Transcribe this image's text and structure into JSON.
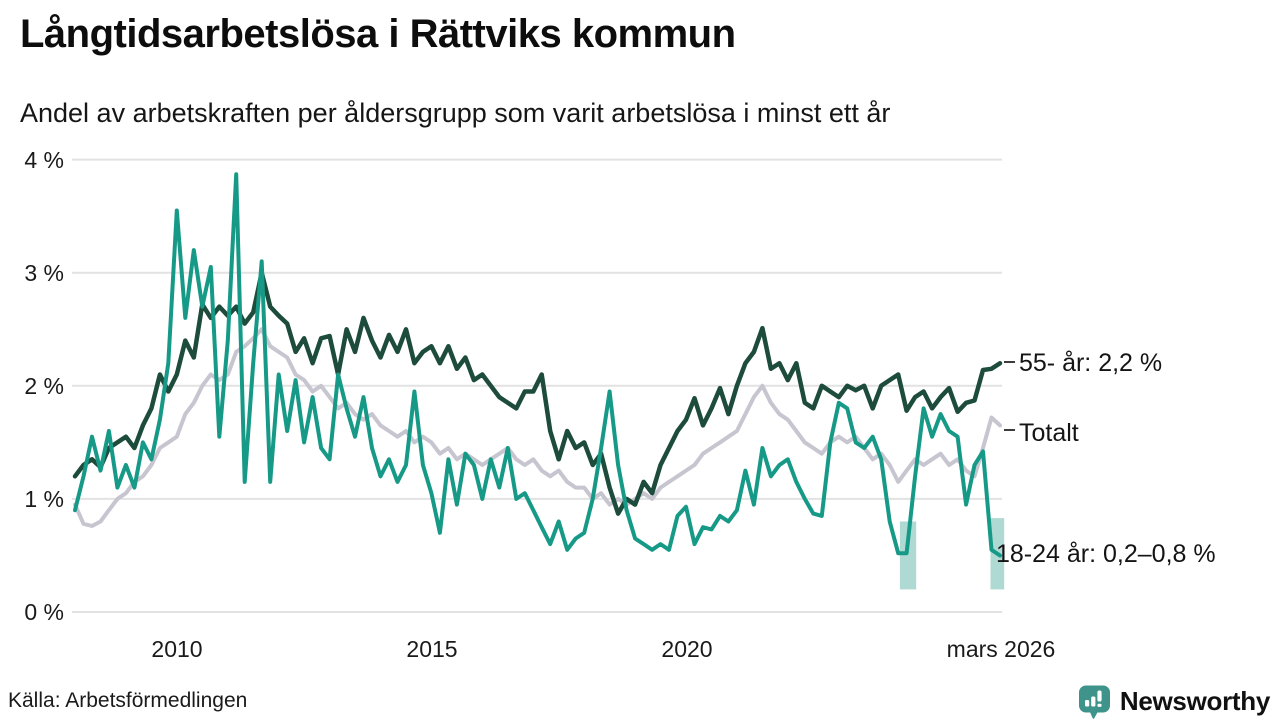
{
  "title": "Långtidsarbetslösa i Rättviks kommun",
  "subtitle": "Andel av arbetskraften per åldersgrupp som varit arbetslösa i minst ett år",
  "source": "Källa: Arbetsförmedlingen",
  "branding": {
    "name": "Newsworthy",
    "color": "#3e938a"
  },
  "colors": {
    "grid": "#e2e2e2",
    "band": "#aedad3",
    "tick_dash": "#3c3c3c",
    "series_55": "#1d4c3c",
    "series_total": "#c6c5d0",
    "series_1824": "#169a87"
  },
  "chart_data": {
    "type": "line",
    "title": "Långtidsarbetslösa i Rättviks kommun",
    "subtitle": "Andel av arbetskraften per åldersgrupp som varit arbetslösa i minst ett år",
    "unit": "% av arbetskraften",
    "grid": true,
    "legend_position": "right-end-labels",
    "ylim": [
      0,
      4
    ],
    "y_ticks": [
      {
        "v": 4,
        "label": "4 %"
      },
      {
        "v": 3,
        "label": "3 %"
      },
      {
        "v": 2,
        "label": "2 %"
      },
      {
        "v": 1,
        "label": "1 %"
      },
      {
        "v": 0,
        "label": "0 %"
      }
    ],
    "x_start": 2008.0,
    "x_end": 2026.1667,
    "sample_interval_months": 2,
    "x_ticks": [
      {
        "t": 2010,
        "label": "2010"
      },
      {
        "t": 2015,
        "label": "2015"
      },
      {
        "t": 2020,
        "label": "2020"
      },
      {
        "t": 2026.1667,
        "label": "mars 2026"
      }
    ],
    "uncertainty_bands": [
      {
        "from": 2024.2,
        "to": 2024.52,
        "low": 0.2,
        "high": 0.8
      },
      {
        "from": 2025.98,
        "to": 2026.25,
        "low": 0.2,
        "high": 0.83
      }
    ],
    "series": [
      {
        "name": "55- år",
        "end_label": "55- år: 2,2 %",
        "last_value": 2.2,
        "color": "#1d4c3c",
        "values": [
          1.2,
          1.3,
          1.35,
          1.28,
          1.45,
          1.5,
          1.55,
          1.45,
          1.65,
          1.8,
          2.1,
          1.95,
          2.1,
          2.4,
          2.25,
          2.72,
          2.6,
          2.7,
          2.62,
          2.7,
          2.55,
          2.65,
          3.0,
          2.7,
          2.62,
          2.55,
          2.3,
          2.42,
          2.2,
          2.42,
          2.44,
          2.1,
          2.5,
          2.3,
          2.6,
          2.4,
          2.25,
          2.45,
          2.3,
          2.5,
          2.2,
          2.3,
          2.35,
          2.2,
          2.35,
          2.15,
          2.25,
          2.05,
          2.1,
          2.0,
          1.9,
          1.85,
          1.8,
          1.95,
          1.95,
          2.1,
          1.6,
          1.35,
          1.6,
          1.45,
          1.5,
          1.3,
          1.4,
          1.1,
          0.87,
          1.0,
          0.95,
          1.15,
          1.05,
          1.3,
          1.45,
          1.6,
          1.7,
          1.89,
          1.65,
          1.8,
          1.98,
          1.75,
          2.0,
          2.2,
          2.3,
          2.51,
          2.15,
          2.2,
          2.05,
          2.2,
          1.85,
          1.8,
          2.0,
          1.95,
          1.9,
          2.0,
          1.96,
          2.0,
          1.8,
          2.0,
          2.05,
          2.1,
          1.78,
          1.9,
          1.95,
          1.8,
          1.9,
          1.98,
          1.77,
          1.85,
          1.87,
          2.14,
          2.15,
          2.2
        ]
      },
      {
        "name": "Totalt",
        "end_label": "Totalt",
        "last_value": 1.65,
        "color": "#c6c5d0",
        "values": [
          0.95,
          0.78,
          0.76,
          0.8,
          0.9,
          1.0,
          1.05,
          1.15,
          1.2,
          1.3,
          1.45,
          1.5,
          1.55,
          1.75,
          1.85,
          2.0,
          2.1,
          2.05,
          2.1,
          2.3,
          2.35,
          2.42,
          2.5,
          2.35,
          2.3,
          2.25,
          2.1,
          2.05,
          1.95,
          2.0,
          1.9,
          1.8,
          1.85,
          1.75,
          1.7,
          1.75,
          1.65,
          1.6,
          1.55,
          1.6,
          1.5,
          1.55,
          1.5,
          1.4,
          1.45,
          1.35,
          1.4,
          1.35,
          1.3,
          1.35,
          1.4,
          1.45,
          1.35,
          1.3,
          1.35,
          1.25,
          1.2,
          1.25,
          1.15,
          1.1,
          1.1,
          1.0,
          1.05,
          0.95,
          1.0,
          0.95,
          1.0,
          1.05,
          1.0,
          1.1,
          1.15,
          1.2,
          1.25,
          1.3,
          1.4,
          1.45,
          1.5,
          1.55,
          1.6,
          1.75,
          1.9,
          2.0,
          1.85,
          1.75,
          1.7,
          1.6,
          1.5,
          1.45,
          1.4,
          1.5,
          1.55,
          1.5,
          1.55,
          1.45,
          1.35,
          1.4,
          1.3,
          1.15,
          1.25,
          1.35,
          1.3,
          1.35,
          1.4,
          1.3,
          1.35,
          1.25,
          1.2,
          1.45,
          1.72,
          1.65
        ]
      },
      {
        "name": "18-24 år",
        "end_label": "18-24 år: 0,2–0,8 %",
        "last_value_range": [
          0.2,
          0.8
        ],
        "color": "#169a87",
        "values": [
          0.9,
          1.2,
          1.55,
          1.25,
          1.6,
          1.1,
          1.3,
          1.1,
          1.5,
          1.35,
          1.7,
          2.2,
          3.55,
          2.6,
          3.2,
          2.7,
          3.05,
          1.55,
          2.4,
          3.87,
          1.15,
          2.2,
          3.1,
          1.15,
          2.1,
          1.6,
          2.05,
          1.5,
          1.9,
          1.45,
          1.35,
          2.1,
          1.8,
          1.55,
          1.9,
          1.45,
          1.2,
          1.35,
          1.15,
          1.3,
          1.95,
          1.3,
          1.05,
          0.7,
          1.35,
          0.95,
          1.4,
          1.3,
          1.0,
          1.35,
          1.1,
          1.45,
          1.0,
          1.05,
          0.9,
          0.75,
          0.6,
          0.8,
          0.55,
          0.65,
          0.7,
          1.0,
          1.45,
          1.95,
          1.3,
          0.9,
          0.65,
          0.6,
          0.55,
          0.6,
          0.55,
          0.85,
          0.93,
          0.6,
          0.75,
          0.73,
          0.85,
          0.8,
          0.9,
          1.25,
          0.95,
          1.45,
          1.2,
          1.3,
          1.35,
          1.15,
          1.0,
          0.87,
          0.85,
          1.5,
          1.85,
          1.8,
          1.5,
          1.45,
          1.55,
          1.35,
          0.8,
          0.52,
          0.52,
          1.2,
          1.8,
          1.55,
          1.75,
          1.6,
          1.55,
          0.95,
          1.3,
          1.42,
          0.55,
          0.5
        ]
      }
    ]
  }
}
